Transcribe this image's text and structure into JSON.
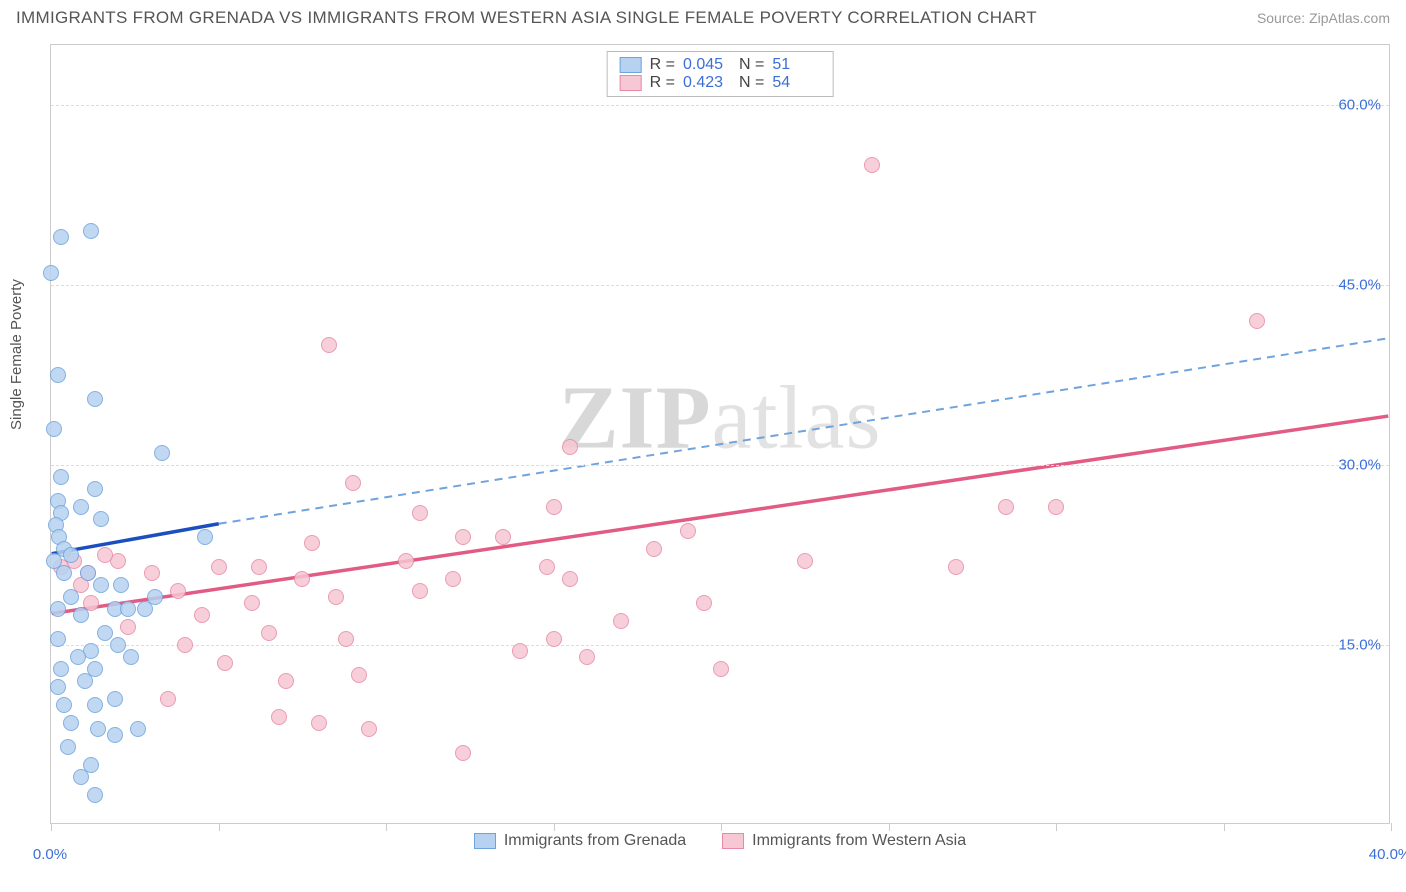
{
  "title": "IMMIGRANTS FROM GRENADA VS IMMIGRANTS FROM WESTERN ASIA SINGLE FEMALE POVERTY CORRELATION CHART",
  "source": "Source: ZipAtlas.com",
  "y_axis_title": "Single Female Poverty",
  "watermark": "ZIPatlas",
  "chart": {
    "type": "scatter",
    "background_color": "#ffffff",
    "grid_color": "#dddddd",
    "border_color": "#cccccc",
    "xlim": [
      0,
      40
    ],
    "ylim": [
      0,
      65
    ],
    "x_ticks": [
      0,
      5,
      10,
      15,
      20,
      25,
      30,
      35,
      40
    ],
    "x_tick_labels_shown": {
      "0": "0.0%",
      "40": "40.0%"
    },
    "y_ticks": [
      15,
      30,
      45,
      60
    ],
    "y_tick_format": "{v}.0%",
    "marker_radius": 8,
    "label_color": "#3b6fd8",
    "label_fontsize": 15,
    "title_fontsize": 17,
    "title_color": "#555555"
  },
  "series": [
    {
      "id": "grenada",
      "label": "Immigrants from Grenada",
      "R": "0.045",
      "N": "51",
      "fill": "#b6d2f0",
      "stroke": "#6fa3dd",
      "trend_color": "#1b4fbf",
      "trend_dash_color": "#6fa3dd",
      "trend_solid": {
        "x1": 0,
        "y1": 22.5,
        "x2": 5,
        "y2": 25
      },
      "trend_dash": {
        "x1": 5,
        "y1": 25,
        "x2": 40,
        "y2": 40.5
      },
      "points": [
        [
          0.0,
          46.0
        ],
        [
          0.3,
          49.0
        ],
        [
          1.2,
          49.5
        ],
        [
          0.2,
          37.5
        ],
        [
          1.3,
          35.5
        ],
        [
          0.1,
          33.0
        ],
        [
          3.3,
          31.0
        ],
        [
          0.3,
          29.0
        ],
        [
          1.3,
          28.0
        ],
        [
          0.2,
          27.0
        ],
        [
          0.3,
          26.0
        ],
        [
          0.15,
          25.0
        ],
        [
          0.9,
          26.5
        ],
        [
          1.5,
          25.5
        ],
        [
          0.25,
          24.0
        ],
        [
          0.4,
          23.0
        ],
        [
          0.1,
          22.0
        ],
        [
          0.6,
          22.5
        ],
        [
          0.4,
          21.0
        ],
        [
          1.1,
          21.0
        ],
        [
          0.6,
          19.0
        ],
        [
          1.5,
          20.0
        ],
        [
          2.1,
          20.0
        ],
        [
          4.6,
          24.0
        ],
        [
          0.2,
          18.0
        ],
        [
          0.9,
          17.5
        ],
        [
          1.9,
          18.0
        ],
        [
          2.3,
          18.0
        ],
        [
          2.8,
          18.0
        ],
        [
          3.1,
          19.0
        ],
        [
          0.2,
          15.5
        ],
        [
          1.2,
          14.5
        ],
        [
          2.0,
          15.0
        ],
        [
          1.6,
          16.0
        ],
        [
          0.8,
          14.0
        ],
        [
          0.3,
          13.0
        ],
        [
          1.3,
          13.0
        ],
        [
          2.4,
          14.0
        ],
        [
          0.2,
          11.5
        ],
        [
          1.0,
          12.0
        ],
        [
          0.4,
          10.0
        ],
        [
          1.3,
          10.0
        ],
        [
          1.9,
          10.5
        ],
        [
          0.6,
          8.5
        ],
        [
          1.4,
          8.0
        ],
        [
          1.9,
          7.5
        ],
        [
          2.6,
          8.0
        ],
        [
          0.5,
          6.5
        ],
        [
          1.2,
          5.0
        ],
        [
          0.9,
          4.0
        ],
        [
          1.3,
          2.5
        ]
      ]
    },
    {
      "id": "western_asia",
      "label": "Immigrants from Western Asia",
      "R": "0.423",
      "N": "54",
      "fill": "#f6c7d4",
      "stroke": "#e88aa5",
      "trend_color": "#e15b84",
      "trend_solid": {
        "x1": 0,
        "y1": 17.5,
        "x2": 40,
        "y2": 34
      },
      "points": [
        [
          24.5,
          55.0
        ],
        [
          36.0,
          42.0
        ],
        [
          8.3,
          40.0
        ],
        [
          15.5,
          31.5
        ],
        [
          9.0,
          28.5
        ],
        [
          11.0,
          26.0
        ],
        [
          15.0,
          26.5
        ],
        [
          28.5,
          26.5
        ],
        [
          30.0,
          26.5
        ],
        [
          7.8,
          23.5
        ],
        [
          12.3,
          24.0
        ],
        [
          13.5,
          24.0
        ],
        [
          19.0,
          24.5
        ],
        [
          10.6,
          22.0
        ],
        [
          14.8,
          21.5
        ],
        [
          18.0,
          23.0
        ],
        [
          22.5,
          22.0
        ],
        [
          27.0,
          21.5
        ],
        [
          6.2,
          21.5
        ],
        [
          7.5,
          20.5
        ],
        [
          12.0,
          20.5
        ],
        [
          15.5,
          20.5
        ],
        [
          5.0,
          21.5
        ],
        [
          3.0,
          21.0
        ],
        [
          3.8,
          19.5
        ],
        [
          6.0,
          18.5
        ],
        [
          8.5,
          19.0
        ],
        [
          11.0,
          19.5
        ],
        [
          17.0,
          17.0
        ],
        [
          19.5,
          18.5
        ],
        [
          2.0,
          22.0
        ],
        [
          1.1,
          21.0
        ],
        [
          1.6,
          22.5
        ],
        [
          0.7,
          22.0
        ],
        [
          0.3,
          21.5
        ],
        [
          0.9,
          20.0
        ],
        [
          4.5,
          17.5
        ],
        [
          6.5,
          16.0
        ],
        [
          8.8,
          15.5
        ],
        [
          14.0,
          14.5
        ],
        [
          15.0,
          15.5
        ],
        [
          16.0,
          14.0
        ],
        [
          20.0,
          13.0
        ],
        [
          5.2,
          13.5
        ],
        [
          7.0,
          12.0
        ],
        [
          9.2,
          12.5
        ],
        [
          4.0,
          15.0
        ],
        [
          6.8,
          9.0
        ],
        [
          8.0,
          8.5
        ],
        [
          9.5,
          8.0
        ],
        [
          12.3,
          6.0
        ],
        [
          3.5,
          10.5
        ],
        [
          1.2,
          18.5
        ],
        [
          2.3,
          16.5
        ]
      ]
    }
  ],
  "legend_top": {
    "R_label": "R =",
    "N_label": "N ="
  }
}
